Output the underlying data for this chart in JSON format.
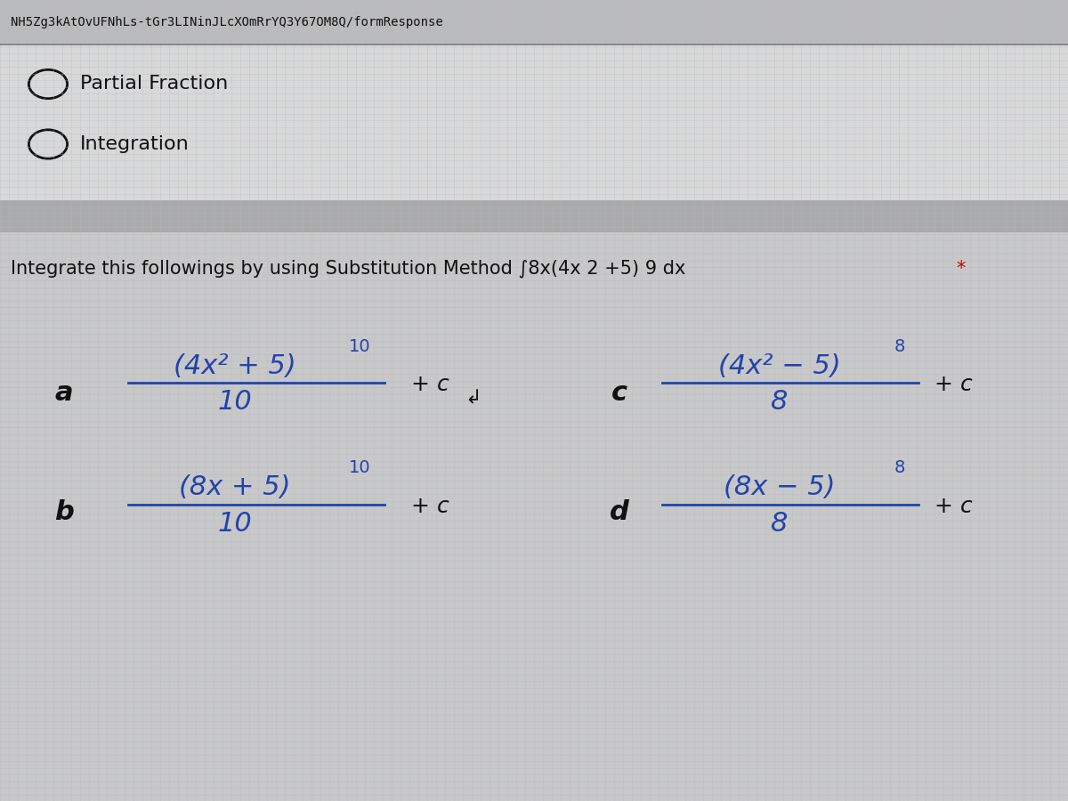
{
  "bg_color": "#c8c8c8",
  "header_text": "NH5Zg3kAtOvUFNhLs-tGr3LINinJLcXOmRrYQ3Y67OM8Q/formResponse",
  "option1": "Partial Fraction",
  "option2": "Integration",
  "question_text": "Integrate this followings by using Substitution Method",
  "question_formula": "∫8x(4x 2 +5) 9 dx",
  "answer_a_num": "(4x² + 5)",
  "answer_a_exp": "10",
  "answer_a_den": "10",
  "answer_a_plus_c": "+ c",
  "answer_b_num": "(8x + 5)",
  "answer_b_exp": "10",
  "answer_b_den": "10",
  "answer_b_plus_c": "+ c",
  "answer_c_num": "(4x² − 5)",
  "answer_c_exp": "8",
  "answer_c_den": "8",
  "answer_c_plus_c": "+ c",
  "answer_d_num": "(8x − 5)",
  "answer_d_exp": "8",
  "answer_d_den": "8",
  "answer_d_plus_c": "+ c",
  "text_color_dark": "#111111",
  "text_color_blue": "#2244aa",
  "text_color_red": "#cc0000",
  "grid_color": "#b0b8c8",
  "header_bg": "#bbbbbb",
  "option_bg": "#d8d8d8",
  "sep_color": "#aaaaaa",
  "sep_line_color": "#888888"
}
